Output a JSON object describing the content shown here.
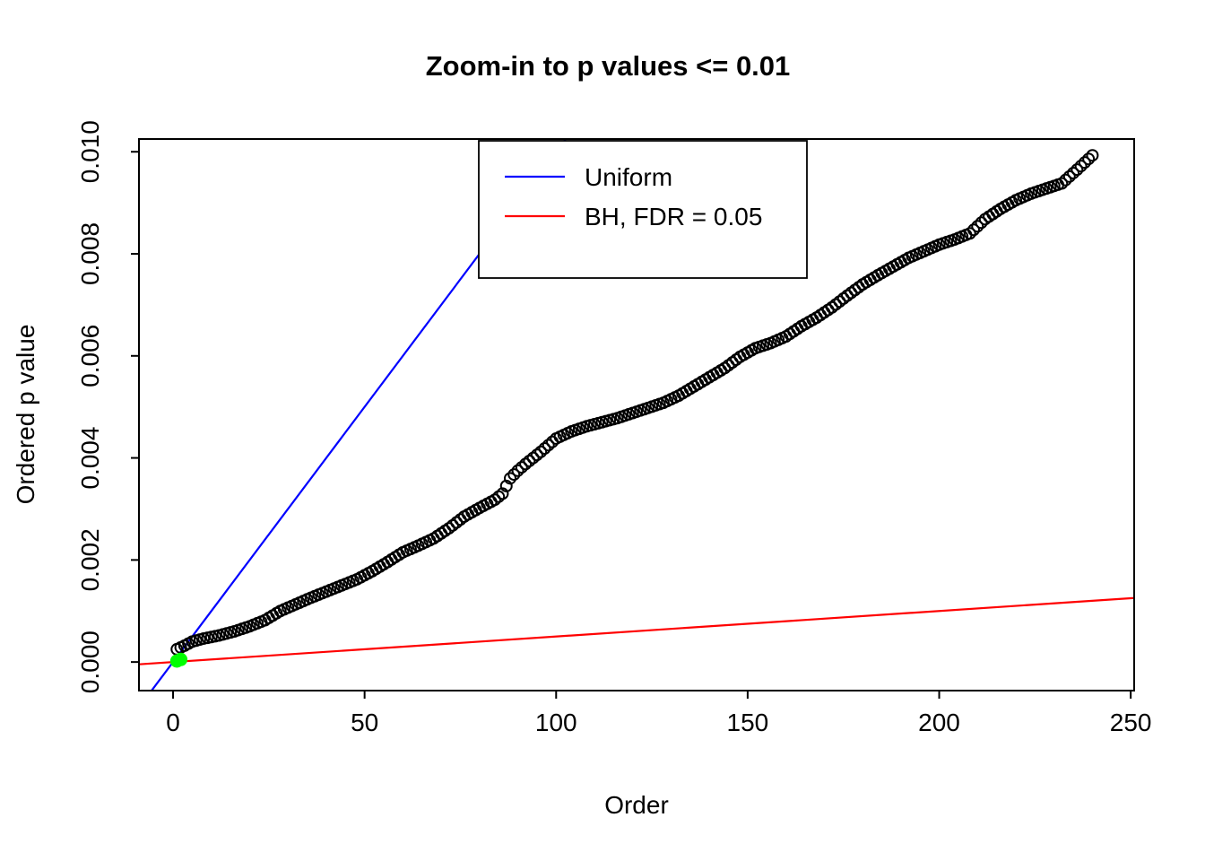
{
  "chart_data": {
    "type": "scatter",
    "title": "Zoom-in to p values <= 0.01",
    "xlabel": "Order",
    "ylabel": "Ordered p value",
    "x_range": [
      -8.9,
      250.9
    ],
    "y_range": [
      -0.00056,
      0.01025
    ],
    "x_ticks": [
      0,
      50,
      100,
      150,
      200,
      250
    ],
    "x_tick_labels": [
      "0",
      "50",
      "100",
      "150",
      "200",
      "250"
    ],
    "y_ticks": [
      0.0,
      0.002,
      0.004,
      0.006,
      0.008,
      0.01
    ],
    "y_tick_labels": [
      "0.000",
      "0.002",
      "0.004",
      "0.006",
      "0.008",
      "0.010"
    ],
    "grid": false,
    "series": [
      {
        "name": "ordered-p-values",
        "marker": "open-circle",
        "color": "#000000",
        "x_start": 1,
        "n_points": 240,
        "anchors_x": [
          1,
          3,
          5,
          8,
          12,
          16,
          20,
          24,
          28,
          32,
          36,
          40,
          44,
          48,
          52,
          56,
          60,
          64,
          68,
          72,
          76,
          80,
          84,
          86,
          88,
          90,
          92,
          96,
          100,
          104,
          108,
          112,
          116,
          120,
          124,
          128,
          132,
          136,
          140,
          144,
          148,
          152,
          156,
          160,
          164,
          168,
          172,
          176,
          180,
          184,
          188,
          192,
          196,
          200,
          204,
          208,
          212,
          216,
          220,
          224,
          228,
          232,
          236,
          240
        ],
        "anchors_y": [
          0.00025,
          0.00032,
          0.0004,
          0.00046,
          0.00052,
          0.0006,
          0.0007,
          0.00082,
          0.001,
          0.00113,
          0.00126,
          0.00138,
          0.0015,
          0.00162,
          0.00178,
          0.00196,
          0.00215,
          0.00228,
          0.00242,
          0.00262,
          0.00285,
          0.00302,
          0.00318,
          0.0033,
          0.0036,
          0.00375,
          0.00388,
          0.00412,
          0.00438,
          0.00452,
          0.00462,
          0.0047,
          0.00478,
          0.00488,
          0.00498,
          0.00508,
          0.00522,
          0.0054,
          0.00558,
          0.00576,
          0.00598,
          0.00615,
          0.00625,
          0.00638,
          0.00658,
          0.00675,
          0.00695,
          0.00718,
          0.0074,
          0.00758,
          0.00775,
          0.00792,
          0.00805,
          0.00818,
          0.00828,
          0.0084,
          0.00868,
          0.00888,
          0.00905,
          0.00918,
          0.00928,
          0.00938,
          0.00965,
          0.00993
        ]
      },
      {
        "name": "significant-p-values",
        "marker": "filled-circle",
        "color": "#00FF00",
        "points": [
          [
            1,
            2e-05
          ],
          [
            2,
            5e-05
          ]
        ]
      }
    ],
    "lines": [
      {
        "name": "uniform",
        "label": "Uniform",
        "color": "#0000FF",
        "slope": 0.0001,
        "intercept": 0
      },
      {
        "name": "bh-fdr",
        "label": "BH, FDR = 0.05",
        "color": "#FF0000",
        "slope": 5e-06,
        "intercept": 0
      }
    ],
    "legend": {
      "position": "top-center",
      "entries": [
        {
          "label": "Uniform",
          "color": "#0000FF"
        },
        {
          "label": "BH, FDR = 0.05",
          "color": "#FF0000"
        }
      ]
    }
  }
}
